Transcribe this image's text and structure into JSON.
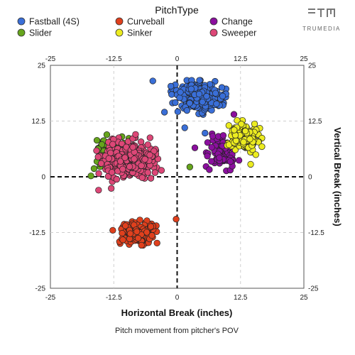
{
  "chart_data": {
    "type": "scatter",
    "title": "",
    "legend_title": "PitchType",
    "xlabel": "Horizontal Break (inches)",
    "ylabel": "Vertical Break (inches)",
    "caption": "Pitch movement from pitcher's POV",
    "brand": "TRUMEDIA",
    "xlim": [
      -25,
      25
    ],
    "ylim": [
      -25,
      25
    ],
    "ticks": [
      -25,
      -12.5,
      0,
      12.5,
      25
    ],
    "tick_labels": [
      "-25",
      "-12.5",
      "0",
      "12.5",
      "25"
    ],
    "grid": true,
    "legend_position": "top",
    "series": [
      {
        "name": "Fastball (4S)",
        "color": "#3a6fd8",
        "cx": 4.2,
        "cy": 17.8,
        "sx": 3.4,
        "sy": 2.4,
        "n": 360,
        "outliers": [
          [
            -4.8,
            21.5
          ],
          [
            -2.5,
            14.5
          ],
          [
            1.5,
            11.0
          ],
          [
            5.5,
            9.8
          ]
        ]
      },
      {
        "name": "Curveball",
        "color": "#e0401d",
        "cx": -7.8,
        "cy": -12.5,
        "sx": 2.6,
        "sy": 1.9,
        "n": 220,
        "outliers": [
          [
            -0.2,
            -9.5
          ],
          [
            -12.7,
            -12.0
          ]
        ]
      },
      {
        "name": "Change",
        "color": "#8b0f9e",
        "cx": 8.8,
        "cy": 5.5,
        "sx": 2.2,
        "sy": 2.6,
        "n": 110,
        "outliers": [
          [
            11.2,
            14.0
          ],
          [
            3.5,
            6.5
          ]
        ]
      },
      {
        "name": "Slider",
        "color": "#66a51c",
        "cx": -13.2,
        "cy": 5.5,
        "sx": 2.4,
        "sy": 2.5,
        "n": 120,
        "outliers": [
          [
            2.5,
            2.2
          ],
          [
            -17.0,
            0.2
          ]
        ]
      },
      {
        "name": "Sinker",
        "color": "#ecec20",
        "cx": 13.2,
        "cy": 8.8,
        "sx": 2.2,
        "sy": 2.4,
        "n": 170,
        "outliers": [
          [
            14.5,
            2.8
          ],
          [
            10.2,
            11.5
          ]
        ]
      },
      {
        "name": "Sweeper",
        "color": "#dd4777",
        "cx": -9.5,
        "cy": 3.8,
        "sx": 4.0,
        "sy": 3.1,
        "n": 360,
        "outliers": [
          [
            -15.5,
            -3.0
          ],
          [
            -13.0,
            -2.6
          ],
          [
            -8.2,
            9.5
          ]
        ]
      }
    ]
  }
}
